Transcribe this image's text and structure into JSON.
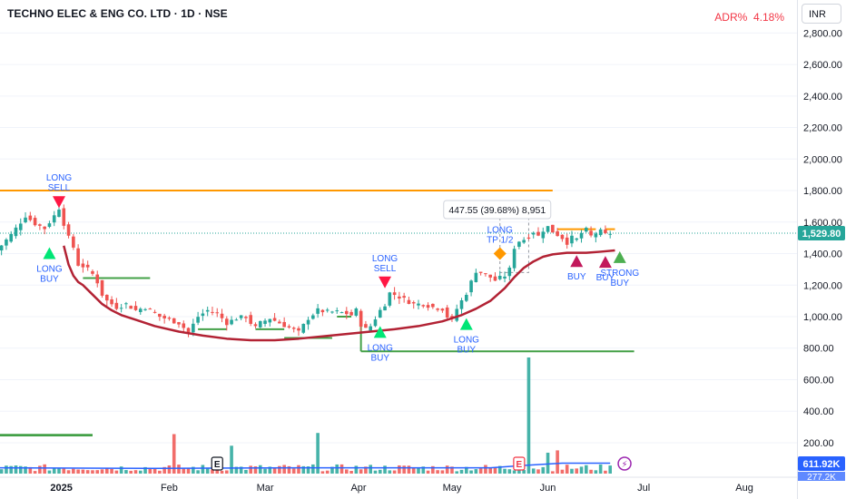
{
  "header": {
    "title": "TECHNO ELEC & ENG CO. LTD · 1D · NSE",
    "adr_label": "ADR%",
    "adr_value": "4.18%",
    "currency": "INR"
  },
  "colors": {
    "up": "#26a69a",
    "down": "#ef5350",
    "ma": "#b22234",
    "resistance": "#ff9800",
    "support": "#43a047",
    "signal_text": "#2962ff",
    "long_buy_marker": "#00e676",
    "sell_marker": "#ff1744",
    "buy_marker": "#c2185b",
    "strong_buy_marker": "#4caf50",
    "tp_marker": "#ff9800",
    "volume_ma": "#2962ff",
    "price_badge": "#26a69a",
    "volume_badge": "#2962ff"
  },
  "chart_data": {
    "type": "candlestick",
    "x_axis_labels": [
      "2025",
      "Feb",
      "Mar",
      "Apr",
      "May",
      "Jun",
      "Jul",
      "Aug"
    ],
    "x_axis_positions": [
      0.5,
      23,
      43,
      62.5,
      82,
      102,
      122,
      143
    ],
    "y_axis": {
      "ticks": [
        200,
        400,
        600,
        800,
        1000,
        1200,
        1400,
        1600,
        1800,
        2000,
        2200,
        2400,
        2600,
        2800
      ],
      "tick_labels": [
        "200.00",
        "400.00",
        "600.00",
        "800.00",
        "1,000.00",
        "1,200.00",
        "1,400.00",
        "1,600.00",
        "1,800.00",
        "2,000.00",
        "2,200.00",
        "2,400.00",
        "2,600.00",
        "2,800.00"
      ]
    },
    "last_price": 1529.8,
    "last_price_label": "1,529.80",
    "volume_last_label": "611.92K",
    "volume_ma_partial_label": "277.2K",
    "measure_label": "447.55 (39.68%) 8,951",
    "resistance_level": 1800,
    "close_path": [
      [
        -13,
        1420
      ],
      [
        -10,
        1520
      ],
      [
        -7,
        1640
      ],
      [
        -5,
        1590
      ],
      [
        -3,
        1560
      ],
      [
        -1,
        1640
      ],
      [
        0,
        1690
      ],
      [
        1,
        1590
      ],
      [
        2,
        1500
      ],
      [
        3,
        1440
      ],
      [
        4,
        1330
      ],
      [
        5,
        1320
      ],
      [
        6,
        1300
      ],
      [
        7,
        1270
      ],
      [
        8,
        1220
      ],
      [
        9,
        1140
      ],
      [
        10,
        1100
      ],
      [
        12,
        1060
      ],
      [
        14,
        1080
      ],
      [
        16,
        1040
      ],
      [
        18,
        1060
      ],
      [
        20,
        1020
      ],
      [
        21,
        1000
      ],
      [
        23,
        980
      ],
      [
        25,
        960
      ],
      [
        27,
        900
      ],
      [
        29,
        1000
      ],
      [
        31,
        1040
      ],
      [
        33,
        1020
      ],
      [
        35,
        960
      ],
      [
        37,
        990
      ],
      [
        39,
        1000
      ],
      [
        40,
        960
      ],
      [
        41,
        930
      ],
      [
        42,
        960
      ],
      [
        44,
        990
      ],
      [
        46,
        960
      ],
      [
        48,
        930
      ],
      [
        50,
        900
      ],
      [
        52,
        990
      ],
      [
        54,
        1040
      ],
      [
        56,
        1030
      ],
      [
        58,
        1030
      ],
      [
        60,
        1020
      ],
      [
        61,
        1010
      ],
      [
        62,
        1040
      ],
      [
        63,
        950
      ],
      [
        64,
        920
      ],
      [
        65,
        940
      ],
      [
        66,
        990
      ],
      [
        67,
        1040
      ],
      [
        68,
        1080
      ],
      [
        69,
        1150
      ],
      [
        70,
        1140
      ],
      [
        72,
        1110
      ],
      [
        74,
        1080
      ],
      [
        76,
        1080
      ],
      [
        78,
        1060
      ],
      [
        80,
        1050
      ],
      [
        81,
        1000
      ],
      [
        82,
        980
      ],
      [
        83,
        1050
      ],
      [
        84,
        1100
      ],
      [
        85,
        1150
      ],
      [
        86,
        1220
      ],
      [
        87,
        1290
      ],
      [
        88,
        1280
      ],
      [
        90,
        1250
      ],
      [
        91,
        1230
      ],
      [
        93,
        1260
      ],
      [
        94,
        1300
      ],
      [
        95,
        1440
      ],
      [
        96,
        1480
      ],
      [
        97,
        1490
      ],
      [
        98,
        1510
      ],
      [
        99,
        1540
      ],
      [
        100,
        1510
      ],
      [
        101,
        1550
      ],
      [
        102,
        1570
      ],
      [
        103,
        1540
      ],
      [
        104,
        1520
      ],
      [
        105,
        1500
      ],
      [
        106,
        1470
      ],
      [
        107,
        1500
      ],
      [
        108,
        1490
      ],
      [
        109,
        1530
      ],
      [
        110,
        1550
      ],
      [
        111,
        1510
      ],
      [
        112,
        1530
      ],
      [
        113,
        1540
      ],
      [
        114,
        1520
      ],
      [
        115,
        1529.8
      ]
    ],
    "moving_average": [
      [
        1,
        1450
      ],
      [
        2,
        1330
      ],
      [
        3,
        1260
      ],
      [
        4,
        1220
      ],
      [
        5,
        1200
      ],
      [
        7,
        1140
      ],
      [
        9,
        1080
      ],
      [
        11,
        1040
      ],
      [
        13,
        1010
      ],
      [
        16,
        980
      ],
      [
        20,
        940
      ],
      [
        25,
        905
      ],
      [
        30,
        880
      ],
      [
        35,
        860
      ],
      [
        40,
        850
      ],
      [
        45,
        850
      ],
      [
        50,
        860
      ],
      [
        55,
        875
      ],
      [
        60,
        890
      ],
      [
        65,
        905
      ],
      [
        70,
        920
      ],
      [
        75,
        940
      ],
      [
        80,
        970
      ],
      [
        84,
        1010
      ],
      [
        87,
        1050
      ],
      [
        90,
        1100
      ],
      [
        93,
        1180
      ],
      [
        95,
        1250
      ],
      [
        97,
        1310
      ],
      [
        99,
        1350
      ],
      [
        101,
        1380
      ],
      [
        103,
        1395
      ],
      [
        106,
        1405
      ],
      [
        110,
        1405
      ],
      [
        113,
        1412
      ],
      [
        116,
        1420
      ]
    ],
    "support_lines": [
      {
        "x1": -15,
        "x2": 7,
        "y": 250
      },
      {
        "x1": 5,
        "x2": 19,
        "y": 1245
      },
      {
        "x1": 29,
        "x2": 35,
        "y": 920
      },
      {
        "x1": 41,
        "x2": 47,
        "y": 920
      },
      {
        "x1": 47,
        "x2": 57,
        "y": 865
      },
      {
        "x1": 58,
        "x2": 61,
        "y": 1000
      },
      {
        "x1": 63,
        "x2": 120,
        "y": 780
      }
    ],
    "resistance_segments": [
      {
        "x1": 104,
        "x2": 112,
        "y": 1555
      },
      {
        "x1": 114,
        "x2": 116,
        "y": 1555
      }
    ],
    "signals": [
      {
        "text": "LONG\nBUY",
        "x": -2,
        "price": 1400,
        "marker": "up",
        "color_key": "long_buy_marker",
        "text_side": "below"
      },
      {
        "text": "LONG\nSELL",
        "x": 0,
        "price": 1730,
        "marker": "down",
        "color_key": "sell_marker",
        "text_side": "above"
      },
      {
        "text": "LONG\nSELL",
        "x": 68,
        "price": 1220,
        "marker": "down",
        "color_key": "sell_marker",
        "text_side": "above"
      },
      {
        "text": "LONG\nBUY",
        "x": 67,
        "price": 900,
        "marker": "up",
        "color_key": "long_buy_marker",
        "text_side": "below"
      },
      {
        "text": "LONG\nBUY",
        "x": 85,
        "price": 950,
        "marker": "up",
        "color_key": "long_buy_marker",
        "text_side": "below"
      },
      {
        "text": "LONG\nTP 1/2",
        "x": 92,
        "price": 1400,
        "marker": "diamond",
        "color_key": "tp_marker",
        "text_side": "above"
      },
      {
        "text": "BUY",
        "x": 108,
        "price": 1350,
        "marker": "up",
        "color_key": "buy_marker",
        "text_side": "below"
      },
      {
        "text": "BUY",
        "x": 114,
        "price": 1345,
        "marker": "up",
        "color_key": "buy_marker",
        "text_side": "below"
      },
      {
        "text": "STRONG\nBUY",
        "x": 117,
        "price": 1375,
        "marker": "up",
        "color_key": "strong_buy_marker",
        "text_side": "below"
      }
    ],
    "volume_spikes": [
      {
        "x": 24,
        "value": 0.34
      },
      {
        "x": 36,
        "value": 0.24
      },
      {
        "x": 54,
        "value": 0.35
      },
      {
        "x": 98,
        "value": 1.0
      },
      {
        "x": 102,
        "value": 0.18
      },
      {
        "x": 104,
        "value": 0.2
      }
    ],
    "event_markers": [
      {
        "label": "E",
        "x": 33,
        "style": "neutral"
      },
      {
        "label": "E",
        "x": 96,
        "style": "earnings"
      },
      {
        "label": "⚡",
        "x": 118,
        "style": "dividend"
      }
    ]
  }
}
